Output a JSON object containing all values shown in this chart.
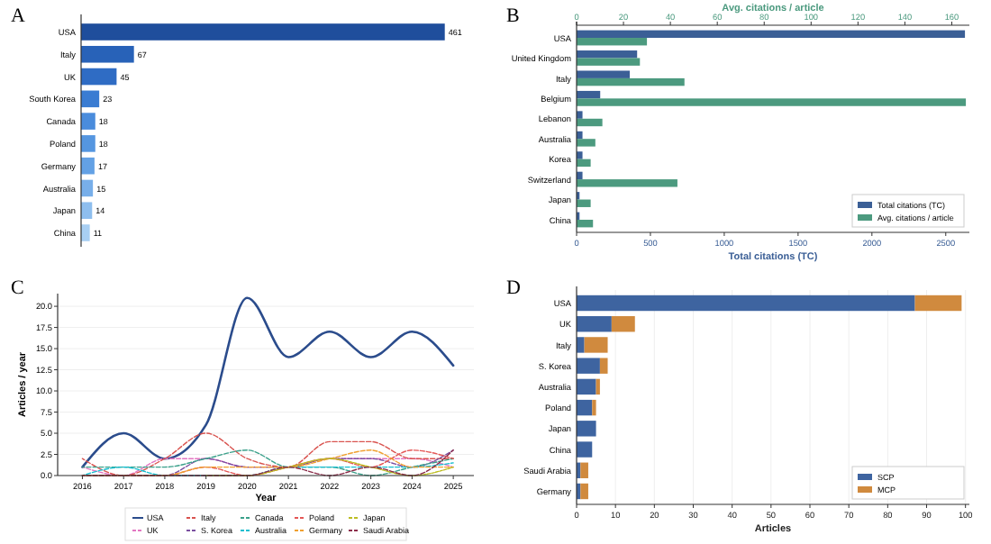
{
  "chart_data": [
    {
      "type": "bar",
      "title": "A",
      "orientation": "horizontal",
      "categories": [
        "USA",
        "Italy",
        "UK",
        "South Korea",
        "Canada",
        "Poland",
        "Germany",
        "Australia",
        "Japan",
        "China"
      ],
      "values": [
        461,
        67,
        45,
        23,
        18,
        18,
        17,
        15,
        14,
        11
      ],
      "colors": [
        "#1f4e9c",
        "#2862b8",
        "#2f6cc4",
        "#3a7cd2",
        "#4a8cdc",
        "#5596e0",
        "#63a1e5",
        "#78afea",
        "#8ebeee",
        "#a8cff3"
      ],
      "data_labels": true
    },
    {
      "type": "bar",
      "title": "B",
      "orientation": "horizontal",
      "categories": [
        "USA",
        "United Kingdom",
        "Italy",
        "Belgium",
        "Lebanon",
        "Australia",
        "Korea",
        "Switzerland",
        "Japan",
        "China"
      ],
      "series": [
        {
          "name": "Total citations (TC)",
          "color": "#3b5f96",
          "values": [
            2630,
            410,
            360,
            160,
            40,
            40,
            40,
            40,
            20,
            20
          ]
        },
        {
          "name": "Avg. citations / article",
          "color": "#4c9a7f",
          "values": [
            30,
            27,
            46,
            166,
            11,
            8,
            6,
            43,
            6,
            7
          ],
          "axis": "x2"
        }
      ],
      "xlabel": "Total citations (TC)",
      "x2label": "Avg. citations / article",
      "xlim": [
        0,
        2660
      ],
      "xticks": [
        0,
        500,
        1000,
        1500,
        2000,
        2500
      ],
      "x2lim": [
        0,
        167.5
      ],
      "x2ticks": [
        0,
        20,
        40,
        60,
        80,
        100,
        120,
        140,
        160
      ],
      "legend": "bottom right"
    },
    {
      "type": "line",
      "title": "C",
      "x": [
        2016,
        2017,
        2018,
        2019,
        2020,
        2021,
        2022,
        2023,
        2024,
        2025
      ],
      "series": [
        {
          "name": "USA",
          "color": "#2b4c8c",
          "values": [
            1,
            5,
            2,
            6,
            21,
            14,
            17,
            14,
            17,
            13
          ],
          "line_style": "solid"
        },
        {
          "name": "UK",
          "color": "#e377c2",
          "values": [
            1,
            0,
            2,
            2,
            1,
            1,
            2,
            2,
            2,
            1
          ],
          "line_style": "dashed"
        },
        {
          "name": "Italy",
          "color": "#d9534f",
          "values": [
            2,
            0,
            2,
            5,
            2,
            1,
            4,
            4,
            2,
            2
          ],
          "line_style": "dashed"
        },
        {
          "name": "S. Korea",
          "color": "#7b4fa0",
          "values": [
            0,
            0,
            0,
            2,
            1,
            1,
            2,
            2,
            1,
            3
          ],
          "line_style": "dashed"
        },
        {
          "name": "Canada",
          "color": "#3aa08a",
          "values": [
            1,
            1,
            1,
            2,
            3,
            1,
            1,
            0,
            1,
            2
          ],
          "line_style": "dashed"
        },
        {
          "name": "Australia",
          "color": "#17becf",
          "values": [
            0,
            1,
            0,
            0,
            0,
            1,
            1,
            1,
            1,
            1.5
          ],
          "line_style": "dashed"
        },
        {
          "name": "Poland",
          "color": "#e45756",
          "values": [
            0,
            0,
            0,
            1,
            0,
            1,
            2,
            1,
            3,
            2
          ],
          "line_style": "dashed"
        },
        {
          "name": "Germany",
          "color": "#f0a030",
          "values": [
            0,
            0,
            0,
            1,
            1,
            1,
            2,
            3,
            1,
            1
          ],
          "line_style": "dashed"
        },
        {
          "name": "Japan",
          "color": "#bcbd22",
          "values": [
            null,
            null,
            null,
            0,
            0,
            1,
            2,
            1,
            0,
            1
          ],
          "line_style": "dashed"
        },
        {
          "name": "Saudi Arabia",
          "color": "#8c2d4a",
          "values": [
            0,
            0,
            0,
            0,
            0,
            1,
            0,
            1,
            0,
            3
          ],
          "line_style": "dashed"
        }
      ],
      "xlabel": "Year",
      "ylabel": "Articles / year",
      "xlim": [
        2015.4,
        2025.5
      ],
      "xticks": [
        2016,
        2017,
        2018,
        2019,
        2020,
        2021,
        2022,
        2023,
        2024,
        2025
      ],
      "ylim": [
        0,
        21.5
      ],
      "yticks": [
        {
          "value": 0,
          "label": "0.0"
        },
        {
          "value": 2.5,
          "label": "2.5"
        },
        {
          "value": 5,
          "label": "5.0"
        },
        {
          "value": 7.5,
          "label": "7.5"
        },
        {
          "value": 10,
          "label": "10.0"
        },
        {
          "value": 12.5,
          "label": "12.5"
        },
        {
          "value": 15,
          "label": "15.0"
        },
        {
          "value": 17.5,
          "label": "17.5"
        },
        {
          "value": 20,
          "label": "20.0"
        }
      ],
      "grid": "y",
      "legend": "bottom"
    },
    {
      "type": "bar",
      "title": "D",
      "orientation": "horizontal",
      "stacked": true,
      "categories": [
        "USA",
        "UK",
        "Italy",
        "S. Korea",
        "Australia",
        "Poland",
        "Japan",
        "China",
        "Saudi Arabia",
        "Germany"
      ],
      "series": [
        {
          "name": "SCP",
          "color": "#3e64a0",
          "values": [
            87,
            9,
            2,
            6,
            5,
            4,
            5,
            4,
            1,
            1
          ]
        },
        {
          "name": "MCP",
          "color": "#d08a3e",
          "values": [
            12,
            6,
            6,
            2,
            1,
            1,
            0,
            0,
            2,
            2
          ]
        }
      ],
      "xlabel": "Articles",
      "xlim": [
        0,
        101
      ],
      "xticks": [
        0,
        10,
        20,
        30,
        40,
        50,
        60,
        70,
        80,
        90,
        100
      ],
      "grid": "x",
      "legend": "bottom right"
    }
  ]
}
